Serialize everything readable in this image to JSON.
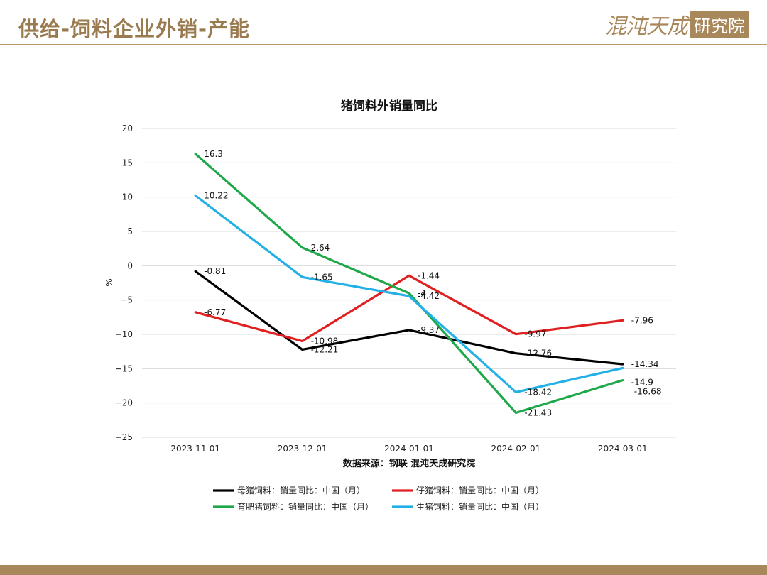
{
  "header": {
    "title": "供给-饲料企业外销-产能",
    "logo_script": "混沌天成",
    "logo_box": "研究院"
  },
  "colors": {
    "accent": "#a8875a",
    "title": "#9a7b4f"
  },
  "chart_data": {
    "type": "line",
    "title": "猪饲料外销量同比",
    "ylabel": "%",
    "xlabel": "",
    "ylim": [
      -25,
      20
    ],
    "yticks": [
      20,
      15,
      10,
      5,
      0,
      -5,
      -10,
      -15,
      -20,
      -25
    ],
    "x": [
      "2023-11-01",
      "2023-12-01",
      "2024-01-01",
      "2024-02-01",
      "2024-03-01"
    ],
    "grid": "horizontal",
    "legend_position": "bottom",
    "source": "数据来源：钢联 混沌天成研究院",
    "series": [
      {
        "name": "母猪饲料：销量同比：中国（月）",
        "color": "#000000",
        "values": [
          -0.81,
          -12.21,
          -9.37,
          -12.76,
          -14.34
        ],
        "labels": [
          "-0.81",
          "-12.21",
          "-9.37",
          "-12.76",
          "-14.34"
        ]
      },
      {
        "name": "仔猪饲料：销量同比：中国（月）",
        "color": "#e02020",
        "values": [
          -6.77,
          -10.98,
          -1.44,
          -9.97,
          -7.96
        ],
        "labels": [
          "-6.77",
          "-10.98",
          "-1.44",
          "-9.97",
          "-7.96"
        ]
      },
      {
        "name": "育肥猪饲料：销量同比：中国（月）",
        "color": "#1fa84a",
        "values": [
          16.3,
          2.64,
          -4.0,
          -21.43,
          -16.68
        ],
        "labels": [
          "16.3",
          "2.64",
          "-4",
          "-21.43",
          "-16.68"
        ]
      },
      {
        "name": "生猪饲料：销量同比：中国（月）",
        "color": "#22b0e6",
        "values": [
          10.22,
          -1.65,
          -4.42,
          -18.42,
          -14.9
        ],
        "labels": [
          "10.22",
          "-1.65",
          "-4.42",
          "-18.42",
          "-14.9"
        ]
      }
    ]
  }
}
